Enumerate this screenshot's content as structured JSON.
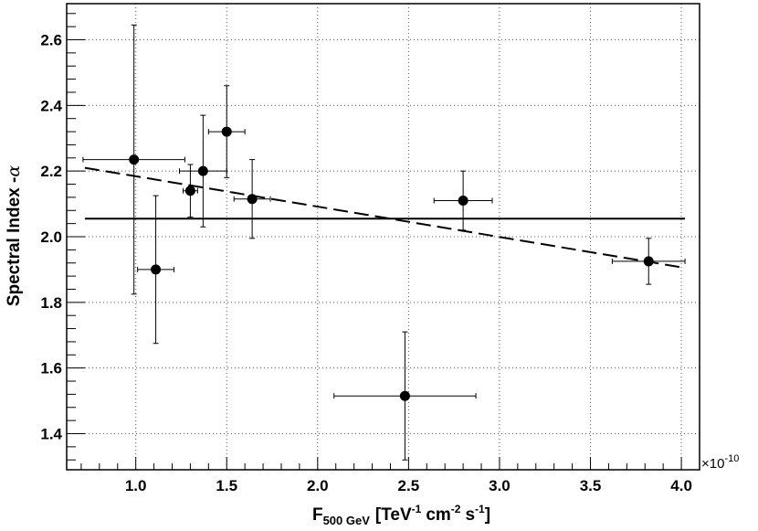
{
  "chart_data": {
    "type": "scatter",
    "title": "",
    "xlabel": {
      "base": "F",
      "subscript": "500 GeV",
      "text": "[TeV",
      "sup1": "-1",
      "text2": "cm",
      "sup2": "-2",
      "text3": "s",
      "sup3": "-1",
      "text4": "]"
    },
    "ylabel": {
      "text": "Spectral Index -",
      "symbol": "α"
    },
    "x_exponent": {
      "prefix": "×10",
      "power": "-10"
    },
    "xlim": [
      0.62,
      4.1
    ],
    "ylim": [
      1.29,
      2.71
    ],
    "xticks": [
      1.0,
      1.5,
      2.0,
      2.5,
      3.0,
      3.5,
      4.0
    ],
    "xtick_labels": [
      "1.0",
      "1.5",
      "2.0",
      "2.5",
      "3.0",
      "3.5",
      "4.0"
    ],
    "yticks": [
      1.4,
      1.6,
      1.8,
      2.0,
      2.2,
      2.4,
      2.6
    ],
    "ytick_labels": [
      "1.4",
      "1.6",
      "1.8",
      "2.0",
      "2.2",
      "2.4",
      "2.6"
    ],
    "grid": true,
    "points": [
      {
        "x": 0.99,
        "y": 2.235,
        "xerr": [
          0.28,
          0.28
        ],
        "yerr": [
          0.41,
          0.41
        ]
      },
      {
        "x": 1.11,
        "y": 1.9,
        "xerr": [
          0.1,
          0.1
        ],
        "yerr": [
          0.225,
          0.225
        ]
      },
      {
        "x": 1.3,
        "y": 2.14,
        "xerr": [
          0.04,
          0.04
        ],
        "yerr": [
          0.08,
          0.08
        ]
      },
      {
        "x": 1.37,
        "y": 2.2,
        "xerr": [
          0.13,
          0.13
        ],
        "yerr": [
          0.17,
          0.17
        ]
      },
      {
        "x": 1.5,
        "y": 2.32,
        "xerr": [
          0.1,
          0.1
        ],
        "yerr": [
          0.14,
          0.14
        ]
      },
      {
        "x": 1.64,
        "y": 2.115,
        "xerr": [
          0.1,
          0.1
        ],
        "yerr": [
          0.12,
          0.12
        ]
      },
      {
        "x": 2.48,
        "y": 1.515,
        "xerr": [
          0.39,
          0.39
        ],
        "yerr": [
          0.195,
          0.195
        ]
      },
      {
        "x": 2.8,
        "y": 2.11,
        "xerr": [
          0.16,
          0.16
        ],
        "yerr": [
          0.09,
          0.09
        ]
      },
      {
        "x": 3.82,
        "y": 1.925,
        "xerr": [
          0.2,
          0.2
        ],
        "yerr": [
          0.07,
          0.07
        ]
      }
    ],
    "constant_fit": {
      "y": 2.055,
      "x_range": [
        0.72,
        4.02
      ],
      "style": "solid"
    },
    "linear_fit": {
      "x_range": [
        0.72,
        4.02
      ],
      "y_range": [
        2.21,
        1.905
      ],
      "style": "dashed"
    }
  }
}
